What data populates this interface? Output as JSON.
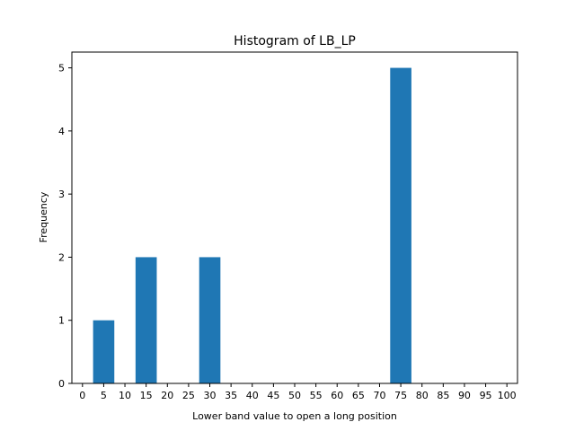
{
  "chart_data": {
    "type": "bar",
    "title": "Histogram of LB_LP",
    "xlabel": "Lower band value to open a long position",
    "ylabel": "Frequency",
    "xlim": [
      -2.5,
      102.5
    ],
    "ylim": [
      0,
      5.25
    ],
    "x_ticks": [
      0,
      5,
      10,
      15,
      20,
      25,
      30,
      35,
      40,
      45,
      50,
      55,
      60,
      65,
      70,
      75,
      80,
      85,
      90,
      95,
      100
    ],
    "y_ticks": [
      0,
      1,
      2,
      3,
      4,
      5
    ],
    "bins": [
      {
        "start": 2.5,
        "end": 7.5,
        "value": 1
      },
      {
        "start": 12.5,
        "end": 17.5,
        "value": 2
      },
      {
        "start": 27.5,
        "end": 32.5,
        "value": 2
      },
      {
        "start": 72.5,
        "end": 77.5,
        "value": 5
      }
    ],
    "bar_color": "#1f77b4",
    "grid": false,
    "legend": "none"
  }
}
